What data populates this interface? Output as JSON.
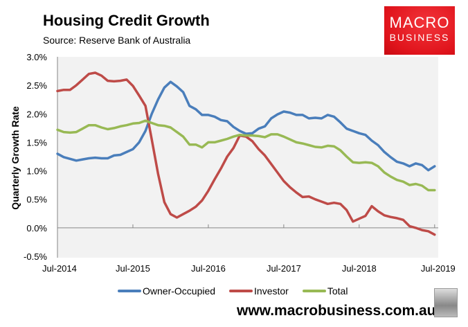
{
  "header": {
    "title": "Housing Credit Growth",
    "subtitle": "Source: Reserve Bank of Australia"
  },
  "logo": {
    "line1": "MACRO",
    "line2": "BUSINESS"
  },
  "footer": {
    "url": "www.macrobusiness.com.au"
  },
  "chart_data": {
    "type": "line",
    "title": "Housing Credit Growth",
    "xlabel": "",
    "ylabel": "Quarterly Growth Rate",
    "ylim": [
      -0.5,
      3.0
    ],
    "yticks": [
      3.0,
      2.5,
      2.0,
      1.5,
      1.0,
      0.5,
      0.0,
      -0.5
    ],
    "ytick_labels": [
      "3.0%",
      "2.5%",
      "2.0%",
      "1.5%",
      "1.0%",
      "0.5%",
      "0.0%",
      "-0.5%"
    ],
    "xtick_labels": [
      "Jul-2014",
      "Jul-2015",
      "Jul-2016",
      "Jul-2017",
      "Jul-2018",
      "Jul-2019"
    ],
    "x_start": "Jul-2014",
    "x_end": "Jul-2019",
    "frequency": "monthly",
    "legend_position": "bottom",
    "series": [
      {
        "name": "Owner-Occupied",
        "color": "#4a7ebb",
        "values": [
          1.3,
          1.24,
          1.21,
          1.18,
          1.2,
          1.22,
          1.23,
          1.22,
          1.22,
          1.27,
          1.28,
          1.33,
          1.38,
          1.5,
          1.7,
          2.0,
          2.25,
          2.46,
          2.56,
          2.48,
          2.38,
          2.14,
          2.08,
          1.98,
          1.98,
          1.95,
          1.89,
          1.87,
          1.77,
          1.7,
          1.65,
          1.66,
          1.74,
          1.78,
          1.92,
          1.99,
          2.04,
          2.02,
          1.98,
          1.98,
          1.92,
          1.93,
          1.92,
          1.98,
          1.95,
          1.85,
          1.74,
          1.7,
          1.66,
          1.63,
          1.53,
          1.45,
          1.33,
          1.24,
          1.16,
          1.13,
          1.08,
          1.13,
          1.1,
          1.01,
          1.08
        ]
      },
      {
        "name": "Investor",
        "color": "#be4b48",
        "values": [
          2.4,
          2.42,
          2.42,
          2.5,
          2.6,
          2.7,
          2.72,
          2.67,
          2.58,
          2.57,
          2.58,
          2.6,
          2.49,
          2.32,
          2.14,
          1.55,
          0.95,
          0.45,
          0.24,
          0.18,
          0.24,
          0.3,
          0.37,
          0.48,
          0.65,
          0.85,
          1.04,
          1.25,
          1.4,
          1.62,
          1.6,
          1.52,
          1.38,
          1.27,
          1.12,
          0.97,
          0.82,
          0.71,
          0.62,
          0.54,
          0.55,
          0.5,
          0.46,
          0.42,
          0.44,
          0.42,
          0.31,
          0.11,
          0.16,
          0.21,
          0.38,
          0.29,
          0.22,
          0.19,
          0.17,
          0.14,
          0.03,
          0.0,
          -0.04,
          -0.06,
          -0.12
        ]
      },
      {
        "name": "Total",
        "color": "#98b954",
        "values": [
          1.72,
          1.68,
          1.67,
          1.68,
          1.74,
          1.8,
          1.8,
          1.76,
          1.73,
          1.75,
          1.78,
          1.8,
          1.83,
          1.84,
          1.88,
          1.84,
          1.8,
          1.79,
          1.76,
          1.68,
          1.6,
          1.46,
          1.46,
          1.41,
          1.5,
          1.5,
          1.53,
          1.56,
          1.6,
          1.63,
          1.62,
          1.62,
          1.61,
          1.59,
          1.64,
          1.64,
          1.6,
          1.55,
          1.5,
          1.48,
          1.45,
          1.42,
          1.41,
          1.44,
          1.43,
          1.36,
          1.25,
          1.15,
          1.14,
          1.15,
          1.14,
          1.08,
          0.97,
          0.9,
          0.84,
          0.81,
          0.75,
          0.77,
          0.74,
          0.66,
          0.66
        ]
      }
    ]
  }
}
